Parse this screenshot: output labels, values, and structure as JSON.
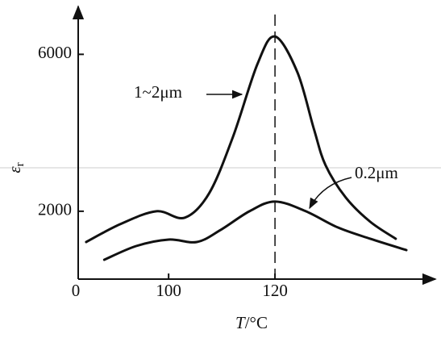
{
  "chart_data": {
    "type": "line",
    "x_label": {
      "symbol": "T",
      "unit": "/°C"
    },
    "y_label": {
      "symbol": "ε",
      "subscript": "r"
    },
    "origin_label": "0",
    "xlim": [
      83,
      150
    ],
    "ylim": [
      270,
      7200
    ],
    "xticks": [
      100,
      120
    ],
    "yticks": [
      2000,
      6000
    ],
    "reference_x": 120,
    "series": [
      {
        "name": "1~2μm",
        "color": "#111111",
        "x": [
          84.5,
          90.9,
          97.7,
          103.0,
          107.6,
          112.1,
          116.7,
          120,
          124.2,
          127.3,
          129.5,
          133.3,
          137.9,
          142.7
        ],
        "values": [
          1216,
          1670,
          2000,
          1835,
          2454,
          3897,
          5753,
          6454,
          5547,
          4103,
          3175,
          2351,
          1732,
          1299
        ]
      },
      {
        "name": "0.2μm",
        "color": "#111111",
        "x": [
          87.9,
          93.9,
          100,
          105.3,
          109.8,
          115.2,
          120,
          125.8,
          131.8,
          137.9,
          144.7
        ],
        "values": [
          763,
          1113,
          1278,
          1216,
          1526,
          2000,
          2247,
          2000,
          1588,
          1299,
          1010
        ]
      }
    ]
  }
}
